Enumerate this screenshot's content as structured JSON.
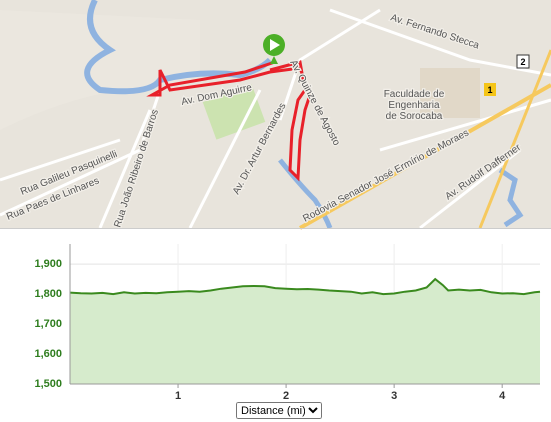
{
  "map": {
    "labels": {
      "fernando": "Av. Fernando Stecca",
      "fac1": "Faculdade de",
      "fac2": "Engenharia",
      "fac3": "de Sorocaba",
      "rodovia": "Rodovia Senador José Ermírio de Moraes",
      "rudolf": "Av. Rudolf Dafferner",
      "artur": "Av. Dr. Artur Bernardes",
      "joao": "Rua João Ribeiro de Barros",
      "galileu": "Rua Galileu Pasquinelli",
      "paes": "Rua Paes de Linhares",
      "dom": "Av. Dom Aguirre",
      "quinze": "Av. Quinze de Agosto",
      "shield1": "1",
      "shield2": "2"
    }
  },
  "chart_data": {
    "type": "area",
    "x": [
      0,
      0.1,
      0.2,
      0.3,
      0.4,
      0.5,
      0.6,
      0.7,
      0.8,
      0.9,
      1.0,
      1.1,
      1.2,
      1.3,
      1.4,
      1.5,
      1.6,
      1.7,
      1.8,
      1.9,
      2.0,
      2.1,
      2.2,
      2.3,
      2.4,
      2.5,
      2.6,
      2.7,
      2.8,
      2.9,
      3.0,
      3.1,
      3.2,
      3.3,
      3.38,
      3.45,
      3.5,
      3.6,
      3.7,
      3.8,
      3.9,
      4.0,
      4.1,
      4.2,
      4.3,
      4.35
    ],
    "values": [
      1805,
      1803,
      1802,
      1804,
      1800,
      1806,
      1802,
      1804,
      1803,
      1806,
      1808,
      1810,
      1808,
      1812,
      1818,
      1822,
      1826,
      1827,
      1826,
      1820,
      1818,
      1816,
      1817,
      1815,
      1812,
      1810,
      1808,
      1802,
      1806,
      1800,
      1802,
      1808,
      1812,
      1822,
      1850,
      1830,
      1812,
      1815,
      1812,
      1814,
      1806,
      1802,
      1803,
      1800,
      1806,
      1808
    ],
    "color": "#3a8a1e",
    "fill": "#d6ebcc",
    "xlim": [
      0,
      4.35
    ],
    "ylim": [
      1500,
      1967
    ],
    "xticks": [
      1,
      2,
      3,
      4
    ],
    "yticks": [
      {
        "value": 1500,
        "label": "1,500"
      },
      {
        "value": 1600,
        "label": "1,600"
      },
      {
        "value": 1700,
        "label": "1,700"
      },
      {
        "value": 1800,
        "label": "1,800"
      },
      {
        "value": 1900,
        "label": "1,900"
      }
    ],
    "grid": true,
    "x_selector": "Distance (mi)"
  }
}
